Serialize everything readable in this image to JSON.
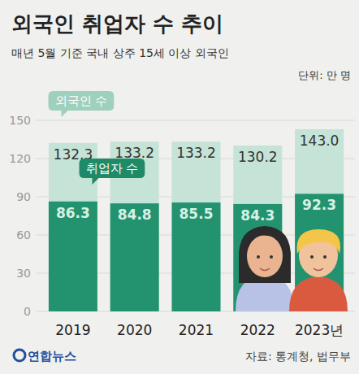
{
  "chart_data": {
    "type": "bar",
    "title": "외국인 취업자 수 추이",
    "subtitle": "매년 5월 기준 국내 상주 15세 이상 외국인",
    "unit_label": "단위: 만 명",
    "source": "자료: 통계청, 법무부",
    "credit": "연합뉴스",
    "categories": [
      "2019",
      "2020",
      "2021",
      "2022",
      "2023년"
    ],
    "series": [
      {
        "name": "외국인 수",
        "color": "#c6e3d8",
        "values": [
          132.3,
          133.2,
          133.2,
          130.2,
          143.0
        ],
        "value_labels": [
          "132.3",
          "133.2",
          "133.2",
          "130.2",
          "143.0"
        ]
      },
      {
        "name": "취업자 수",
        "color": "#23936f",
        "values": [
          86.3,
          84.8,
          85.5,
          84.3,
          92.3
        ]
      }
    ],
    "ylim": [
      0,
      150
    ],
    "yticks": [
      0,
      30,
      60,
      90,
      120,
      150
    ],
    "grid": true,
    "legend": "top-left",
    "data_labels": true
  }
}
